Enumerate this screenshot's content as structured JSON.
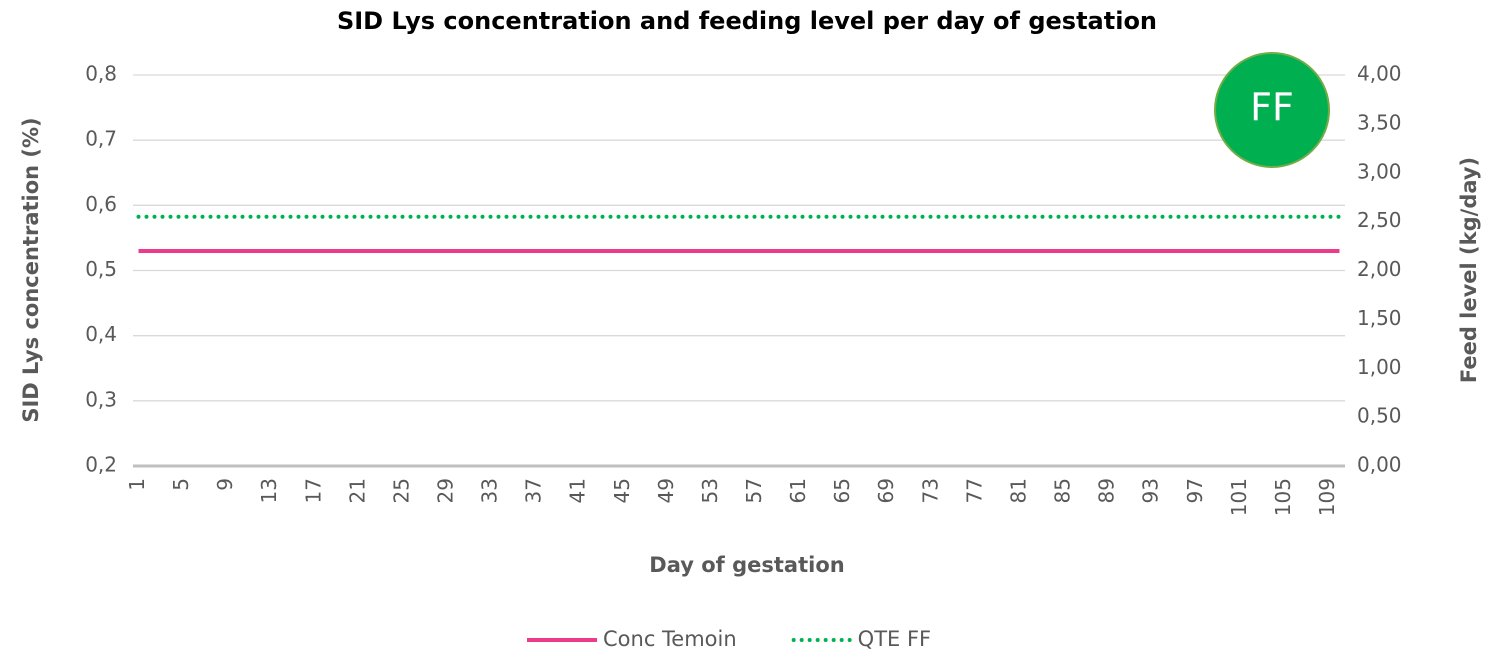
{
  "chart_data": {
    "type": "line",
    "title": "SID Lys concentration and feeding level per day of gestation",
    "x_label": "Day of gestation",
    "y_label": "SID Lys concentration (%)",
    "y2_label": "Feed level (kg/day)",
    "annotation": "FF",
    "x": [
      1,
      2,
      3,
      4,
      5,
      6,
      7,
      8,
      9,
      10,
      11,
      12,
      13,
      14,
      15,
      16,
      17,
      18,
      19,
      20,
      21,
      22,
      23,
      24,
      25,
      26,
      27,
      28,
      29,
      30,
      31,
      32,
      33,
      34,
      35,
      36,
      37,
      38,
      39,
      40,
      41,
      42,
      43,
      44,
      45,
      46,
      47,
      48,
      49,
      50,
      51,
      52,
      53,
      54,
      55,
      56,
      57,
      58,
      59,
      60,
      61,
      62,
      63,
      64,
      65,
      66,
      67,
      68,
      69,
      70,
      71,
      72,
      73,
      74,
      75,
      76,
      77,
      78,
      79,
      80,
      81,
      82,
      83,
      84,
      85,
      86,
      87,
      88,
      89,
      90,
      91,
      92,
      93,
      94,
      95,
      96,
      97,
      98,
      99,
      100,
      101,
      102,
      103,
      104,
      105,
      106,
      107,
      108,
      109,
      110
    ],
    "xlim": [
      0.5,
      110.5
    ],
    "xticks": [
      1,
      5,
      9,
      13,
      17,
      21,
      25,
      29,
      33,
      37,
      41,
      45,
      49,
      53,
      57,
      61,
      65,
      69,
      73,
      77,
      81,
      85,
      89,
      93,
      97,
      101,
      105,
      109
    ],
    "ylim": [
      0.2,
      0.8
    ],
    "yticks": [
      {
        "value": 0.2,
        "label": "0,2"
      },
      {
        "value": 0.3,
        "label": "0,3"
      },
      {
        "value": 0.4,
        "label": "0,4"
      },
      {
        "value": 0.5,
        "label": "0,5"
      },
      {
        "value": 0.6,
        "label": "0,6"
      },
      {
        "value": 0.7,
        "label": "0,7"
      },
      {
        "value": 0.8,
        "label": "0,8"
      }
    ],
    "y2lim": [
      0,
      4
    ],
    "y2ticks": [
      {
        "value": 0,
        "label": "0,00"
      },
      {
        "value": 0.5,
        "label": "0,50"
      },
      {
        "value": 1,
        "label": "1,00"
      },
      {
        "value": 1.5,
        "label": "1,50"
      },
      {
        "value": 2,
        "label": "2,00"
      },
      {
        "value": 2.5,
        "label": "2,50"
      },
      {
        "value": 3,
        "label": "3,00"
      },
      {
        "value": 3.5,
        "label": "3,50"
      },
      {
        "value": 4,
        "label": "4,00"
      }
    ],
    "grid": true,
    "legend": "bottom",
    "series": [
      {
        "name": "Conc Temoin",
        "color": "#ec3a8c",
        "style": "solid",
        "values": [
          0.53,
          0.53,
          0.53,
          0.53,
          0.53,
          0.53,
          0.53,
          0.53,
          0.53,
          0.53,
          0.53,
          0.53,
          0.53,
          0.53,
          0.53,
          0.53,
          0.53,
          0.53,
          0.53,
          0.53,
          0.53,
          0.53,
          0.53,
          0.53,
          0.53,
          0.53,
          0.53,
          0.53,
          0.53,
          0.53,
          0.53,
          0.53,
          0.53,
          0.53,
          0.53,
          0.53,
          0.53,
          0.53,
          0.53,
          0.53,
          0.53,
          0.53,
          0.53,
          0.53,
          0.53,
          0.53,
          0.53,
          0.53,
          0.53,
          0.53,
          0.53,
          0.53,
          0.53,
          0.53,
          0.53,
          0.53,
          0.53,
          0.53,
          0.53,
          0.53,
          0.53,
          0.53,
          0.53,
          0.53,
          0.53,
          0.53,
          0.53,
          0.53,
          0.53,
          0.53,
          0.53,
          0.53,
          0.53,
          0.53,
          0.53,
          0.53,
          0.53,
          0.53,
          0.53,
          0.53,
          0.53,
          0.53,
          0.53,
          0.53,
          0.53,
          0.53,
          0.53,
          0.53,
          0.53,
          0.53,
          0.53,
          0.53,
          0.53,
          0.53,
          0.53,
          0.53,
          0.53,
          0.53,
          0.53,
          0.53,
          0.53,
          0.53,
          0.53,
          0.53,
          0.53,
          0.53,
          0.53,
          0.53,
          0.53,
          0.53
        ]
      },
      {
        "name": "QTE FF",
        "color": "#00b050",
        "style": "dotted",
        "axis": "y2",
        "values": [
          2.55,
          2.55,
          2.55,
          2.55,
          2.55,
          2.55,
          2.55,
          2.55,
          2.55,
          2.55,
          2.55,
          2.55,
          2.55,
          2.55,
          2.55,
          2.55,
          2.55,
          2.55,
          2.55,
          2.55,
          2.55,
          2.55,
          2.55,
          2.55,
          2.55,
          2.55,
          2.55,
          2.55,
          2.55,
          2.55,
          2.55,
          2.55,
          2.55,
          2.55,
          2.55,
          2.55,
          2.55,
          2.55,
          2.55,
          2.55,
          2.55,
          2.55,
          2.55,
          2.55,
          2.55,
          2.55,
          2.55,
          2.55,
          2.55,
          2.55,
          2.55,
          2.55,
          2.55,
          2.55,
          2.55,
          2.55,
          2.55,
          2.55,
          2.55,
          2.55,
          2.55,
          2.55,
          2.55,
          2.55,
          2.55,
          2.55,
          2.55,
          2.55,
          2.55,
          2.55,
          2.55,
          2.55,
          2.55,
          2.55,
          2.55,
          2.55,
          2.55,
          2.55,
          2.55,
          2.55,
          2.55,
          2.55,
          2.55,
          2.55,
          2.55,
          2.55,
          2.55,
          2.55,
          2.55,
          2.55,
          2.55,
          2.55,
          2.55,
          2.55,
          2.55,
          2.55,
          2.55,
          2.55,
          2.55,
          2.55,
          2.55,
          2.55,
          2.55,
          2.55,
          2.55,
          2.55,
          2.55,
          2.55,
          2.55,
          2.55
        ]
      }
    ]
  }
}
